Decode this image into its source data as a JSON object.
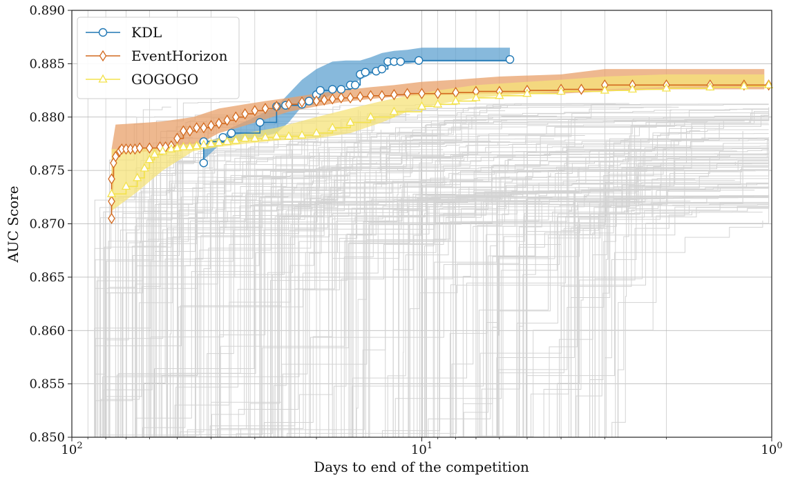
{
  "chart_data": {
    "type": "line",
    "title": "",
    "xlabel": "Days to end of the competition",
    "ylabel": "AUC Score",
    "x_scale": "log",
    "x_reversed": true,
    "xlim": [
      100,
      1
    ],
    "ylim": [
      0.85,
      0.89
    ],
    "grid": true,
    "legend_position": "top-left",
    "x_ticks": [
      100,
      10,
      1
    ],
    "x_tick_labels": {
      "base": "10",
      "exps": [
        "2",
        "1",
        "0"
      ]
    },
    "y_ticks": [
      0.85,
      0.855,
      0.86,
      0.865,
      0.87,
      0.875,
      0.88,
      0.885,
      0.89
    ],
    "y_tick_labels": [
      "0.850",
      "0.855",
      "0.860",
      "0.865",
      "0.870",
      "0.875",
      "0.880",
      "0.885",
      "0.890"
    ],
    "background_series_color": "#d3d3d3",
    "series": [
      {
        "name": "KDL",
        "color": "#1f77b4",
        "band_color": "#5fa2d0",
        "marker": "circle",
        "x": [
          42.0,
          42.0,
          37.0,
          37.0,
          35.0,
          29.0,
          26.0,
          24.5,
          22.0,
          21.0,
          20.0,
          19.5,
          18.0,
          17.0,
          16.0,
          15.5,
          15.0,
          14.5,
          13.5,
          13.0,
          12.5,
          12.0,
          11.5,
          10.2,
          5.6
        ],
        "y": [
          0.8757,
          0.8777,
          0.878,
          0.8781,
          0.8785,
          0.8795,
          0.881,
          0.8811,
          0.8812,
          0.8815,
          0.8821,
          0.8825,
          0.8826,
          0.8826,
          0.883,
          0.883,
          0.884,
          0.8842,
          0.8843,
          0.8845,
          0.8852,
          0.8852,
          0.8852,
          0.8853,
          0.8854
        ],
        "band_upper": [
          0.8776,
          0.8782,
          0.879,
          0.88,
          0.881,
          0.8822,
          0.8835,
          0.8845,
          0.8852,
          0.8853,
          0.8853,
          0.8856,
          0.886,
          0.8862,
          0.8863,
          0.8865,
          0.8865
        ],
        "band_lower": [
          0.876,
          0.8777,
          0.8777,
          0.878,
          0.8785,
          0.8795,
          0.881,
          0.8812,
          0.8822,
          0.8828,
          0.8835,
          0.884,
          0.8845,
          0.885,
          0.885,
          0.8852,
          0.8852
        ],
        "band_x": [
          42.0,
          37.0,
          35.0,
          30.0,
          26.0,
          24.0,
          22.0,
          20.0,
          18.0,
          16.5,
          15.0,
          14.0,
          13.0,
          12.0,
          11.0,
          10.0,
          5.6
        ]
      },
      {
        "name": "EventHorizon",
        "color": "#d2691e",
        "band_color": "#e8a06a",
        "marker": "diamond",
        "x": [
          77.0,
          77.0,
          77.0,
          76.0,
          75.0,
          73.0,
          72.0,
          70.0,
          68.0,
          66.0,
          64.0,
          60.0,
          56.0,
          54.0,
          52.0,
          50.0,
          48.0,
          46.0,
          44.0,
          42.0,
          40.0,
          38.0,
          36.0,
          34.0,
          32.0,
          30.0,
          28.0,
          26.0,
          24.0,
          22.0,
          20.0,
          19.0,
          18.0,
          17.0,
          16.0,
          15.0,
          14.0,
          13.0,
          12.0,
          11.0,
          10.0,
          9.0,
          8.0,
          7.0,
          6.0,
          5.0,
          4.0,
          3.5,
          3.0,
          2.5,
          2.0,
          1.5,
          1.2,
          1.02
        ],
        "y": [
          0.8705,
          0.8721,
          0.8742,
          0.8757,
          0.8763,
          0.8768,
          0.877,
          0.877,
          0.877,
          0.877,
          0.8771,
          0.8771,
          0.8772,
          0.8772,
          0.8773,
          0.878,
          0.8787,
          0.8787,
          0.879,
          0.879,
          0.8792,
          0.8794,
          0.8797,
          0.88,
          0.8803,
          0.8806,
          0.8808,
          0.881,
          0.8812,
          0.8814,
          0.8815,
          0.8816,
          0.8817,
          0.8818,
          0.8818,
          0.8819,
          0.882,
          0.882,
          0.8821,
          0.8822,
          0.8822,
          0.8822,
          0.8823,
          0.8824,
          0.8824,
          0.8825,
          0.8826,
          0.8826,
          0.883,
          0.883,
          0.883,
          0.883,
          0.883,
          0.883
        ],
        "band_upper": [
          0.877,
          0.8793,
          0.8795,
          0.8796,
          0.88,
          0.8808,
          0.8812,
          0.8815,
          0.8818,
          0.8822,
          0.8825,
          0.8828,
          0.883,
          0.8833,
          0.8835,
          0.8838,
          0.884,
          0.8845,
          0.8845,
          0.8845
        ],
        "band_lower": [
          0.8705,
          0.8765,
          0.8768,
          0.877,
          0.8772,
          0.8785,
          0.8792,
          0.8798,
          0.8805,
          0.881,
          0.8814,
          0.8817,
          0.8819,
          0.882,
          0.8821,
          0.8822,
          0.8822,
          0.8824,
          0.8826,
          0.8826
        ],
        "band_x": [
          77.0,
          75.0,
          60.0,
          55.0,
          45.0,
          38.0,
          32.0,
          28.0,
          24.0,
          20.0,
          17.0,
          14.0,
          12.0,
          10.0,
          8.0,
          6.0,
          4.0,
          3.0,
          2.0,
          1.05
        ]
      },
      {
        "name": "GOGOGO",
        "color": "#f3e24b",
        "band_color": "#f5e37a",
        "marker": "triangle",
        "x": [
          77.0,
          70.0,
          65.0,
          62.0,
          60.0,
          58.0,
          55.0,
          52.0,
          50.0,
          48.0,
          46.0,
          44.0,
          42.0,
          40.0,
          38.0,
          36.0,
          34.0,
          32.0,
          30.0,
          28.0,
          26.0,
          24.0,
          22.0,
          20.0,
          18.0,
          16.0,
          14.0,
          12.0,
          10.0,
          9.0,
          8.0,
          7.0,
          6.0,
          5.0,
          4.0,
          3.0,
          2.5,
          2.0,
          1.5,
          1.2,
          1.02
        ],
        "y": [
          0.8728,
          0.8735,
          0.8743,
          0.8752,
          0.876,
          0.8765,
          0.8768,
          0.877,
          0.8771,
          0.8772,
          0.8772,
          0.8773,
          0.8774,
          0.8775,
          0.8776,
          0.8777,
          0.8778,
          0.878,
          0.878,
          0.8781,
          0.8782,
          0.8782,
          0.8783,
          0.8785,
          0.879,
          0.8795,
          0.88,
          0.8805,
          0.881,
          0.8812,
          0.8815,
          0.8818,
          0.882,
          0.8822,
          0.8824,
          0.8825,
          0.8826,
          0.8827,
          0.8828,
          0.8829,
          0.883
        ],
        "band_upper": [
          0.877,
          0.877,
          0.8772,
          0.8775,
          0.878,
          0.8785,
          0.879,
          0.88,
          0.8808,
          0.8815,
          0.882,
          0.8825,
          0.883,
          0.8833,
          0.8835,
          0.8838,
          0.884,
          0.884,
          0.884
        ],
        "band_lower": [
          0.8712,
          0.873,
          0.875,
          0.8768,
          0.8772,
          0.8775,
          0.8778,
          0.878,
          0.8785,
          0.8795,
          0.8805,
          0.8812,
          0.8818,
          0.8822,
          0.8824,
          0.8826,
          0.8828,
          0.8829,
          0.883
        ],
        "band_x": [
          77.0,
          65.0,
          55.0,
          45.0,
          38.0,
          32.0,
          26.0,
          20.0,
          16.0,
          13.0,
          11.0,
          9.0,
          7.0,
          5.0,
          4.0,
          3.0,
          2.0,
          1.5,
          1.05
        ]
      }
    ]
  }
}
